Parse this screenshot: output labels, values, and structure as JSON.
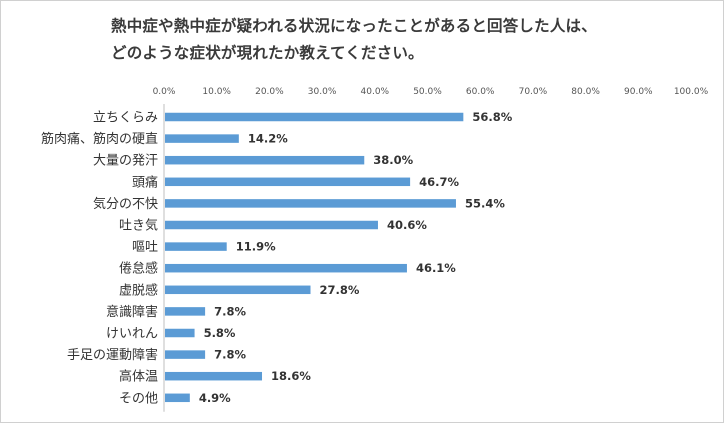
{
  "chart_data": {
    "type": "bar",
    "orientation": "horizontal",
    "title_lines": [
      "熱中症や熱中症が疑われる状況になったことがあると回答した人は、",
      "どのような症状が現れたか教えてください。"
    ],
    "categories": [
      "立ちくらみ",
      "筋肉痛、筋肉の硬直",
      "大量の発汗",
      "頭痛",
      "気分の不快",
      "吐き気",
      "嘔吐",
      "倦怠感",
      "虚脱感",
      "意識障害",
      "けいれん",
      "手足の運動障害",
      "高体温",
      "その他"
    ],
    "values": [
      56.8,
      14.2,
      38.0,
      46.7,
      55.4,
      40.6,
      11.9,
      46.1,
      27.8,
      7.8,
      5.8,
      7.8,
      18.6,
      4.9
    ],
    "value_labels": [
      "56.8%",
      "14.2%",
      "38.0%",
      "46.7%",
      "55.4%",
      "40.6%",
      "11.9%",
      "46.1%",
      "27.8%",
      "7.8%",
      "5.8%",
      "7.8%",
      "18.6%",
      "4.9%"
    ],
    "x_ticks": [
      "0.0%",
      "10.0%",
      "20.0%",
      "30.0%",
      "40.0%",
      "50.0%",
      "60.0%",
      "70.0%",
      "80.0%",
      "90.0%",
      "100.0%"
    ],
    "xlim": [
      0,
      100
    ],
    "x_axis_position": "top",
    "grid": false,
    "bar_color": "#5b9bd5"
  }
}
